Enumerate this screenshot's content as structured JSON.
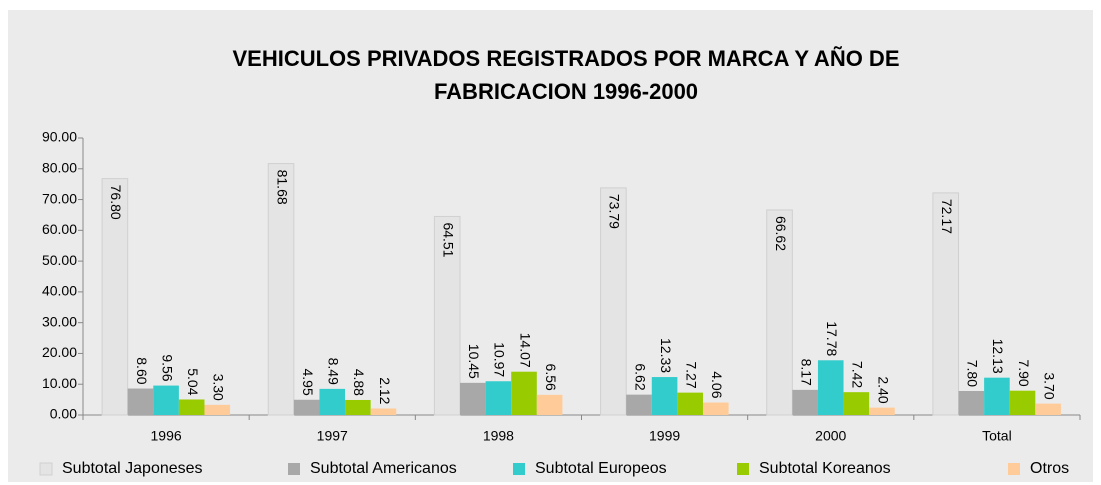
{
  "chart_data": {
    "type": "bar",
    "title": [
      "VEHICULOS PRIVADOS REGISTRADOS POR MARCA Y AÑO DE",
      "FABRICACION 1996-2000"
    ],
    "categories": [
      "1996",
      "1997",
      "1998",
      "1999",
      "2000",
      "Total"
    ],
    "series": [
      {
        "name": "Subtotal Japoneses",
        "color": "#e4e4e4",
        "values": [
          76.8,
          81.68,
          64.51,
          73.79,
          66.62,
          72.17
        ],
        "value_labels": [
          "76.80",
          "81.68",
          "64.51",
          "73.79",
          "66.62",
          "72.17"
        ]
      },
      {
        "name": "Subtotal Americanos",
        "color": "#a8a8a8",
        "values": [
          8.6,
          4.95,
          10.45,
          6.62,
          8.17,
          7.8
        ],
        "value_labels": [
          "8.60",
          "4.95",
          "10.45",
          "6.62",
          "8.17",
          "7.80"
        ]
      },
      {
        "name": "Subtotal Europeos",
        "color": "#33cccc",
        "values": [
          9.56,
          8.49,
          10.97,
          12.33,
          17.78,
          12.13
        ],
        "value_labels": [
          "9.56",
          "8.49",
          "10.97",
          "12.33",
          "17.78",
          "12.13"
        ]
      },
      {
        "name": "Subtotal Koreanos",
        "color": "#99cc00",
        "values": [
          5.04,
          4.88,
          14.07,
          7.27,
          7.42,
          7.9
        ],
        "value_labels": [
          "5.04",
          "4.88",
          "14.07",
          "7.27",
          "7.42",
          "7.90"
        ]
      },
      {
        "name": "Otros",
        "color": "#ffcc99",
        "values": [
          3.3,
          2.12,
          6.56,
          4.06,
          2.4,
          3.7
        ],
        "value_labels": [
          "3.30",
          "2.12",
          "6.56",
          "4.06",
          "2.40",
          "3.70"
        ]
      }
    ],
    "ylim": [
      0,
      90
    ],
    "yticks": [
      {
        "value": 0,
        "label": "0.00"
      },
      {
        "value": 10,
        "label": "10.00"
      },
      {
        "value": 20,
        "label": "20.00"
      },
      {
        "value": 30,
        "label": "30.00"
      },
      {
        "value": 40,
        "label": "40.00"
      },
      {
        "value": 50,
        "label": "50.00"
      },
      {
        "value": 60,
        "label": "60.00"
      },
      {
        "value": 70,
        "label": "70.00"
      },
      {
        "value": 80,
        "label": "80.00"
      },
      {
        "value": 90,
        "label": "90.00"
      }
    ],
    "grid": false,
    "legend": "bottom"
  }
}
